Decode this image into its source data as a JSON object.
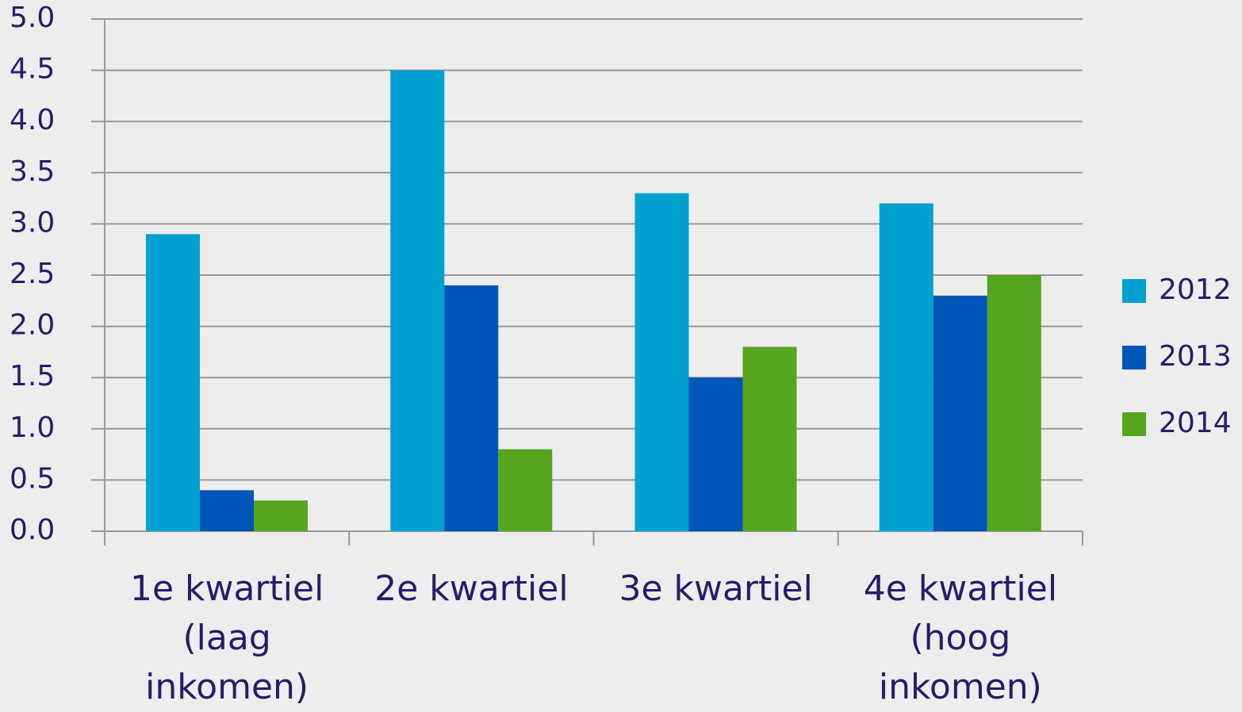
{
  "chart_data": {
    "type": "bar",
    "categories": [
      "1e kwartiel (laag inkomen)",
      "2e kwartiel",
      "3e kwartiel",
      "4e kwartiel (hoog inkomen)"
    ],
    "series": [
      {
        "name": "2012",
        "color": "#00a0d0",
        "values": [
          2.9,
          4.5,
          3.3,
          3.2
        ]
      },
      {
        "name": "2013",
        "color": "#0055b8",
        "values": [
          0.4,
          2.4,
          1.5,
          2.3
        ]
      },
      {
        "name": "2014",
        "color": "#55a51f",
        "values": [
          0.3,
          0.8,
          1.8,
          2.5
        ]
      }
    ],
    "ylim": [
      0,
      5
    ],
    "yticks": [
      {
        "value": 0,
        "label": "0.0"
      },
      0.5,
      {
        "value": 1,
        "label": "1.0"
      },
      1.5,
      {
        "value": 2,
        "label": "2.0"
      },
      2.5,
      {
        "value": 3,
        "label": "3.0"
      },
      3.5,
      {
        "value": 4,
        "label": "4.0"
      },
      4.5,
      {
        "value": 5,
        "label": "5.0"
      }
    ],
    "grid": true,
    "legend": "right"
  }
}
